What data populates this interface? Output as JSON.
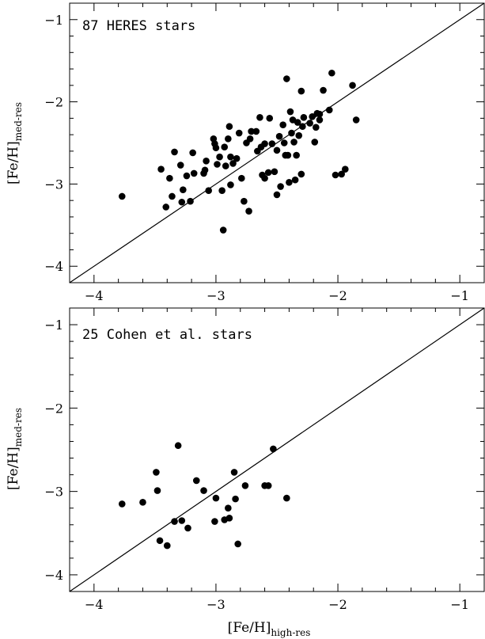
{
  "chart_data": [
    {
      "type": "scatter",
      "title": "87 HERES stars",
      "xlabel": "",
      "ylabel_main": "[Fe/H]",
      "ylabel_sub": "med-res",
      "xlim": [
        -4.2,
        -0.8
      ],
      "ylim": [
        -4.2,
        -0.8
      ],
      "x_ticks": [
        -4,
        -3,
        -2,
        -1
      ],
      "y_ticks": [
        -4,
        -3,
        -2,
        -1
      ],
      "x_tick_labels": [
        "−4",
        "−3",
        "−2",
        "−1"
      ],
      "y_tick_labels": [
        "−4",
        "−3",
        "−2",
        "−1"
      ],
      "reference_line": "one-to-one",
      "points": [
        {
          "x": -3.77,
          "y": -3.15
        },
        {
          "x": -3.45,
          "y": -2.82
        },
        {
          "x": -3.41,
          "y": -3.28
        },
        {
          "x": -3.38,
          "y": -2.93
        },
        {
          "x": -3.36,
          "y": -3.15
        },
        {
          "x": -3.34,
          "y": -2.61
        },
        {
          "x": -3.29,
          "y": -2.77
        },
        {
          "x": -3.28,
          "y": -3.22
        },
        {
          "x": -3.27,
          "y": -3.07
        },
        {
          "x": -3.24,
          "y": -2.9
        },
        {
          "x": -3.21,
          "y": -3.21
        },
        {
          "x": -3.19,
          "y": -2.62
        },
        {
          "x": -3.18,
          "y": -2.87
        },
        {
          "x": -3.1,
          "y": -2.87
        },
        {
          "x": -3.09,
          "y": -2.83
        },
        {
          "x": -3.08,
          "y": -2.72
        },
        {
          "x": -3.06,
          "y": -3.08
        },
        {
          "x": -3.02,
          "y": -2.45
        },
        {
          "x": -3.01,
          "y": -2.51
        },
        {
          "x": -3.0,
          "y": -2.56
        },
        {
          "x": -2.99,
          "y": -2.76
        },
        {
          "x": -2.97,
          "y": -2.67
        },
        {
          "x": -2.95,
          "y": -3.08
        },
        {
          "x": -2.94,
          "y": -3.56
        },
        {
          "x": -2.93,
          "y": -2.55
        },
        {
          "x": -2.92,
          "y": -2.78
        },
        {
          "x": -2.9,
          "y": -2.45
        },
        {
          "x": -2.89,
          "y": -2.3
        },
        {
          "x": -2.88,
          "y": -2.67
        },
        {
          "x": -2.88,
          "y": -3.01
        },
        {
          "x": -2.86,
          "y": -2.75
        },
        {
          "x": -2.83,
          "y": -2.69
        },
        {
          "x": -2.81,
          "y": -2.38
        },
        {
          "x": -2.79,
          "y": -2.93
        },
        {
          "x": -2.77,
          "y": -3.21
        },
        {
          "x": -2.75,
          "y": -2.5
        },
        {
          "x": -2.73,
          "y": -3.33
        },
        {
          "x": -2.72,
          "y": -2.45
        },
        {
          "x": -2.71,
          "y": -2.36
        },
        {
          "x": -2.67,
          "y": -2.36
        },
        {
          "x": -2.66,
          "y": -2.6
        },
        {
          "x": -2.64,
          "y": -2.19
        },
        {
          "x": -2.63,
          "y": -2.55
        },
        {
          "x": -2.62,
          "y": -2.89
        },
        {
          "x": -2.6,
          "y": -2.51
        },
        {
          "x": -2.6,
          "y": -2.93
        },
        {
          "x": -2.57,
          "y": -2.86
        },
        {
          "x": -2.56,
          "y": -2.2
        },
        {
          "x": -2.54,
          "y": -2.51
        },
        {
          "x": -2.52,
          "y": -2.85
        },
        {
          "x": -2.5,
          "y": -2.59
        },
        {
          "x": -2.5,
          "y": -3.13
        },
        {
          "x": -2.48,
          "y": -2.42
        },
        {
          "x": -2.47,
          "y": -3.03
        },
        {
          "x": -2.45,
          "y": -2.28
        },
        {
          "x": -2.44,
          "y": -2.5
        },
        {
          "x": -2.43,
          "y": -2.65
        },
        {
          "x": -2.42,
          "y": -1.72
        },
        {
          "x": -2.41,
          "y": -2.65
        },
        {
          "x": -2.4,
          "y": -2.98
        },
        {
          "x": -2.39,
          "y": -2.12
        },
        {
          "x": -2.38,
          "y": -2.38
        },
        {
          "x": -2.37,
          "y": -2.22
        },
        {
          "x": -2.36,
          "y": -2.49
        },
        {
          "x": -2.35,
          "y": -2.95
        },
        {
          "x": -2.34,
          "y": -2.65
        },
        {
          "x": -2.33,
          "y": -2.25
        },
        {
          "x": -2.32,
          "y": -2.41
        },
        {
          "x": -2.3,
          "y": -1.87
        },
        {
          "x": -2.3,
          "y": -2.88
        },
        {
          "x": -2.29,
          "y": -2.3
        },
        {
          "x": -2.28,
          "y": -2.19
        },
        {
          "x": -2.23,
          "y": -2.26
        },
        {
          "x": -2.21,
          "y": -2.18
        },
        {
          "x": -2.19,
          "y": -2.49
        },
        {
          "x": -2.18,
          "y": -2.31
        },
        {
          "x": -2.17,
          "y": -2.14
        },
        {
          "x": -2.15,
          "y": -2.22
        },
        {
          "x": -2.12,
          "y": -1.86
        },
        {
          "x": -2.07,
          "y": -2.1
        },
        {
          "x": -2.05,
          "y": -1.65
        },
        {
          "x": -2.02,
          "y": -2.89
        },
        {
          "x": -1.97,
          "y": -2.88
        },
        {
          "x": -1.94,
          "y": -2.82
        },
        {
          "x": -1.88,
          "y": -1.8
        },
        {
          "x": -1.85,
          "y": -2.22
        },
        {
          "x": -2.15,
          "y": -2.15
        }
      ]
    },
    {
      "type": "scatter",
      "title": "25 Cohen et al. stars",
      "xlabel_main": "[Fe/H]",
      "xlabel_sub": "high-res",
      "ylabel_main": "[Fe/H]",
      "ylabel_sub": "med-res",
      "xlim": [
        -4.2,
        -0.8
      ],
      "ylim": [
        -4.2,
        -0.8
      ],
      "x_ticks": [
        -4,
        -3,
        -2,
        -1
      ],
      "y_ticks": [
        -4,
        -3,
        -2,
        -1
      ],
      "x_tick_labels": [
        "−4",
        "−3",
        "−2",
        "−1"
      ],
      "y_tick_labels": [
        "−4",
        "−3",
        "−2",
        "−1"
      ],
      "reference_line": "one-to-one",
      "points": [
        {
          "x": -3.77,
          "y": -3.15
        },
        {
          "x": -3.6,
          "y": -3.13
        },
        {
          "x": -3.49,
          "y": -2.77
        },
        {
          "x": -3.48,
          "y": -2.99
        },
        {
          "x": -3.46,
          "y": -3.59
        },
        {
          "x": -3.4,
          "y": -3.65
        },
        {
          "x": -3.34,
          "y": -3.36
        },
        {
          "x": -3.31,
          "y": -2.45
        },
        {
          "x": -3.28,
          "y": -3.35
        },
        {
          "x": -3.23,
          "y": -3.44
        },
        {
          "x": -3.16,
          "y": -2.87
        },
        {
          "x": -3.1,
          "y": -2.99
        },
        {
          "x": -3.01,
          "y": -3.36
        },
        {
          "x": -3.0,
          "y": -3.08
        },
        {
          "x": -2.93,
          "y": -3.34
        },
        {
          "x": -2.9,
          "y": -3.2
        },
        {
          "x": -2.89,
          "y": -3.32
        },
        {
          "x": -2.85,
          "y": -2.77
        },
        {
          "x": -2.84,
          "y": -3.09
        },
        {
          "x": -2.82,
          "y": -3.63
        },
        {
          "x": -2.76,
          "y": -2.93
        },
        {
          "x": -2.6,
          "y": -2.93
        },
        {
          "x": -2.57,
          "y": -2.93
        },
        {
          "x": -2.53,
          "y": -2.49
        },
        {
          "x": -2.42,
          "y": -3.08
        }
      ]
    }
  ]
}
